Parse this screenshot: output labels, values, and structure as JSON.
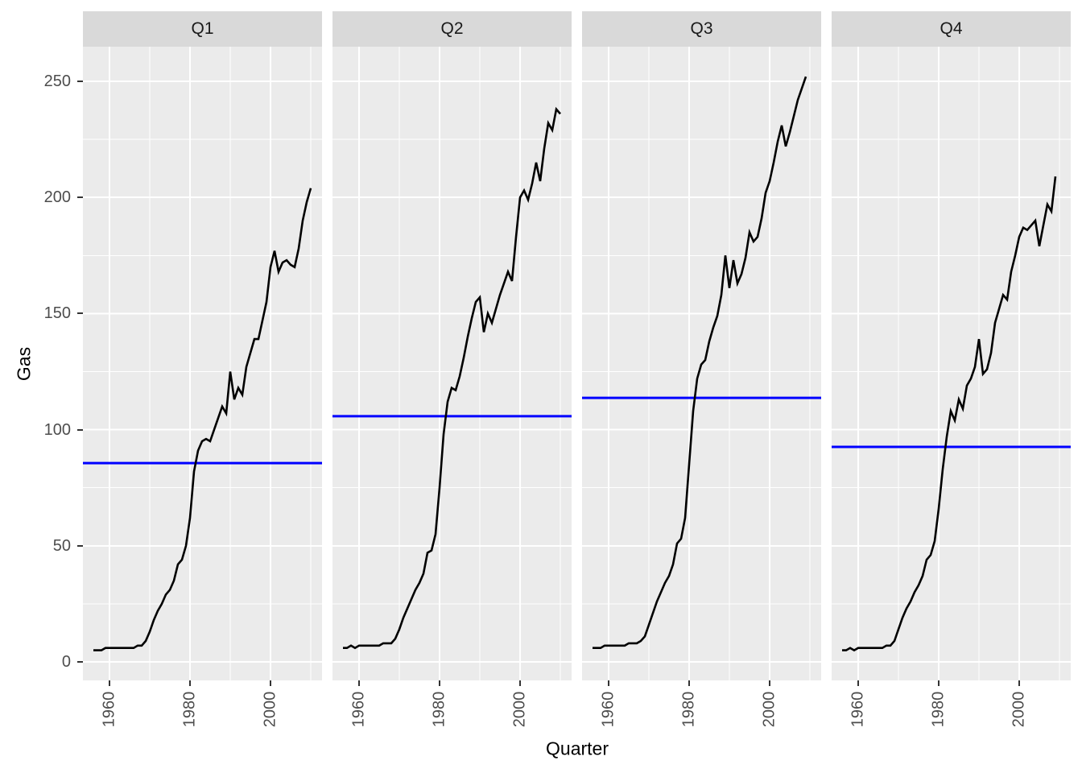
{
  "chart_data": {
    "type": "line",
    "title": "",
    "xlabel": "Quarter",
    "ylabel": "Gas",
    "grid": "on",
    "legend": "none",
    "x_major_ticks": [
      1960,
      1980,
      2000
    ],
    "x_minor_gridlines": [
      1970,
      1990,
      2010
    ],
    "y_major_ticks": [
      0,
      50,
      100,
      150,
      200,
      250
    ],
    "y_minor_gridlines": [
      25,
      75,
      125,
      175,
      225
    ],
    "xlim": [
      1953.4,
      2012.8
    ],
    "ylim": [
      -8,
      265
    ],
    "colors": {
      "data_line": "#000000",
      "mean_line": "#0000FF",
      "panel_background": "#EBEBEB",
      "strip_background": "#D9D9D9",
      "grid_major": "#FFFFFF",
      "grid_minor": "#FFFFFF",
      "axis_text": "#4D4D4D",
      "tick_mark": "#333333",
      "title_text": "#000000"
    },
    "facets": [
      {
        "label": "Q1",
        "mean": 85.6,
        "start_year": 1956,
        "values": [
          5,
          5,
          5,
          6,
          6,
          6,
          6,
          6,
          6,
          6,
          6,
          7,
          7,
          9,
          13,
          18,
          22,
          25,
          29,
          31,
          35,
          42,
          44,
          50,
          62,
          82,
          91,
          95,
          96,
          95,
          100,
          105,
          110,
          107,
          125,
          113,
          118,
          115,
          127,
          133,
          139,
          139,
          147,
          155,
          170,
          177,
          168,
          172,
          173,
          171,
          170,
          178,
          190,
          198,
          204
        ]
      },
      {
        "label": "Q2",
        "mean": 105.8,
        "start_year": 1956,
        "values": [
          6,
          6,
          7,
          6,
          7,
          7,
          7,
          7,
          7,
          7,
          8,
          8,
          8,
          10,
          14,
          19,
          23,
          27,
          31,
          34,
          38,
          47,
          48,
          55,
          75,
          98,
          112,
          118,
          117,
          123,
          131,
          140,
          148,
          155,
          157,
          142,
          150,
          146,
          152,
          158,
          163,
          168,
          164,
          183,
          200,
          203,
          199,
          206,
          215,
          207,
          221,
          232,
          229,
          238,
          236
        ]
      },
      {
        "label": "Q3",
        "mean": 113.7,
        "start_year": 1956,
        "values": [
          6,
          6,
          6,
          7,
          7,
          7,
          7,
          7,
          7,
          8,
          8,
          8,
          9,
          11,
          16,
          21,
          26,
          30,
          34,
          37,
          42,
          51,
          53,
          62,
          85,
          108,
          122,
          128,
          130,
          138,
          144,
          149,
          158,
          175,
          161,
          173,
          163,
          167,
          174,
          185,
          181,
          183,
          191,
          202,
          207,
          215,
          224,
          231,
          222,
          228,
          235,
          242,
          247,
          252
        ]
      },
      {
        "label": "Q4",
        "mean": 92.6,
        "start_year": 1956,
        "values": [
          5,
          5,
          6,
          5,
          6,
          6,
          6,
          6,
          6,
          6,
          6,
          7,
          7,
          9,
          14,
          19,
          23,
          26,
          30,
          33,
          37,
          44,
          46,
          52,
          66,
          83,
          97,
          108,
          104,
          113,
          109,
          119,
          122,
          127,
          139,
          124,
          126,
          133,
          146,
          152,
          158,
          156,
          168,
          175,
          183,
          187,
          186,
          188,
          190,
          179,
          188,
          197,
          194,
          209
        ]
      }
    ]
  }
}
